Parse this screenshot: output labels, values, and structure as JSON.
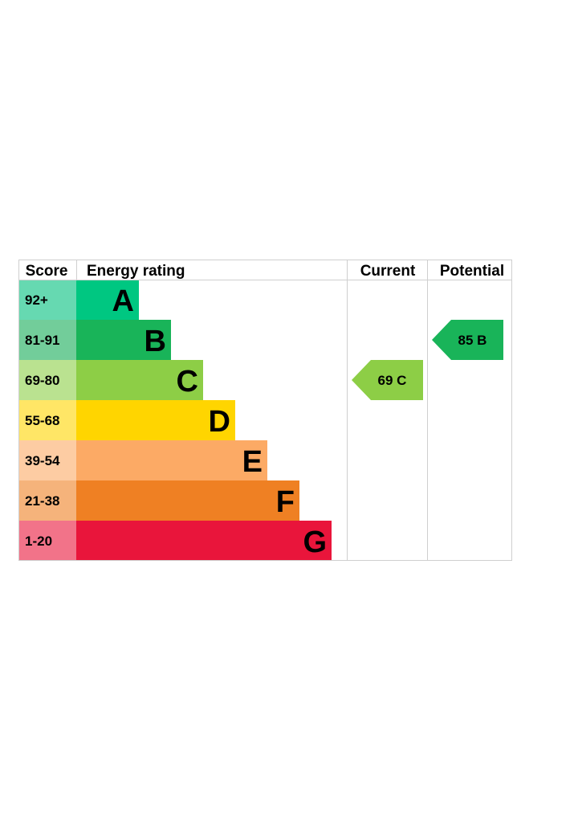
{
  "chart_data": {
    "type": "bar",
    "headers": {
      "score": "Score",
      "rating": "Energy rating",
      "current": "Current",
      "potential": "Potential"
    },
    "bands": [
      {
        "letter": "A",
        "range": "92+",
        "color": "#00c781",
        "score_bg": "#66d9b1"
      },
      {
        "letter": "B",
        "range": "81-91",
        "color": "#19b459",
        "score_bg": "#72cd9a"
      },
      {
        "letter": "C",
        "range": "69-80",
        "color": "#8dce46",
        "score_bg": "#bae290"
      },
      {
        "letter": "D",
        "range": "55-68",
        "color": "#ffd500",
        "score_bg": "#ffe666"
      },
      {
        "letter": "E",
        "range": "39-54",
        "color": "#fcaa65",
        "score_bg": "#fdcca3"
      },
      {
        "letter": "F",
        "range": "21-38",
        "color": "#ef8023",
        "score_bg": "#f5b37b"
      },
      {
        "letter": "G",
        "range": "1-20",
        "color": "#e9153b",
        "score_bg": "#f27389"
      }
    ],
    "current": {
      "value": 69,
      "band": "C",
      "label": "69  C"
    },
    "potential": {
      "value": 85,
      "band": "B",
      "label": "85  B"
    }
  }
}
